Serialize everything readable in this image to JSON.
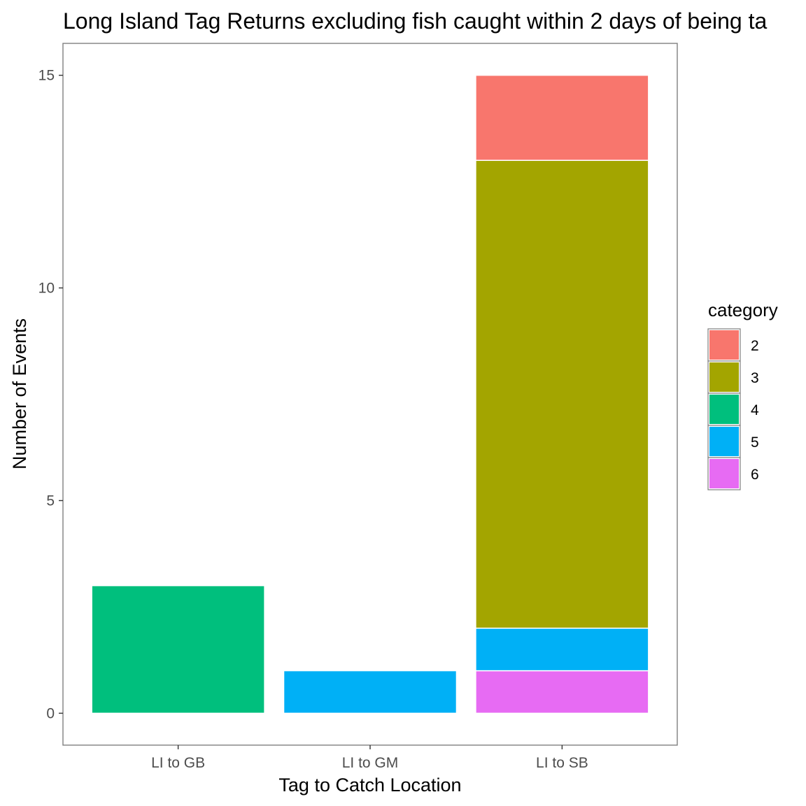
{
  "chart_data": {
    "type": "bar",
    "stacked": true,
    "title": "Long Island Tag Returns excluding fish caught within 2 days of being ta",
    "xlabel": "Tag to Catch Location",
    "ylabel": "Number of Events",
    "categories": [
      "LI to GB",
      "LI to GM",
      "LI to SB"
    ],
    "ylim": [
      -0.75,
      15.75
    ],
    "yticks": [
      0,
      5,
      10,
      15
    ],
    "grid": false,
    "legend": {
      "title": "category",
      "placement": "right"
    },
    "series": [
      {
        "name": "2",
        "color": "#F8766D",
        "values": [
          0,
          0,
          2
        ]
      },
      {
        "name": "3",
        "color": "#A3A500",
        "values": [
          0,
          0,
          11
        ]
      },
      {
        "name": "4",
        "color": "#00BF7D",
        "values": [
          3,
          0,
          0
        ]
      },
      {
        "name": "5",
        "color": "#00B0F6",
        "values": [
          0,
          1,
          1
        ]
      },
      {
        "name": "6",
        "color": "#E76BF3",
        "values": [
          0,
          0,
          1
        ]
      }
    ]
  }
}
